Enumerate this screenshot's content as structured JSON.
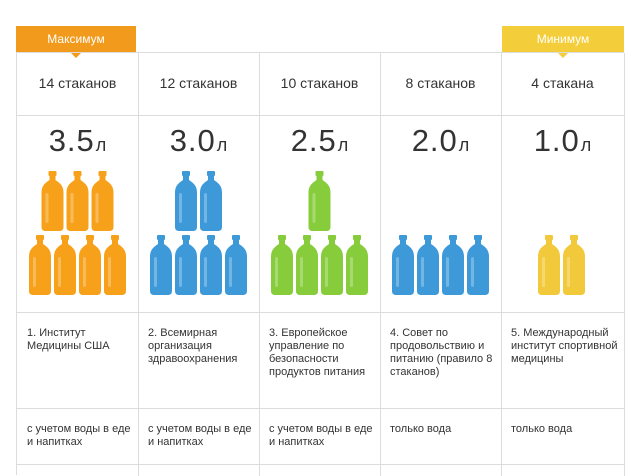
{
  "badges": {
    "max": "Максимум",
    "min": "Минимум"
  },
  "colors": {
    "orange": "#f7a11a",
    "blue": "#3d99d8",
    "green": "#86cc3b",
    "yellow": "#f2c93a"
  },
  "columns": [
    {
      "glasses": "14 стаканов",
      "volume_num": "3.5",
      "volume_unit": "л",
      "bottles": 7,
      "color": "orange",
      "source": "1. Институт Медицины США",
      "note": "с учетом воды в еде и напитках"
    },
    {
      "glasses": "12 стаканов",
      "volume_num": "3.0",
      "volume_unit": "л",
      "bottles": 6,
      "color": "blue",
      "source": "2. Всемирная организация здравоохранения",
      "note": "с учетом воды в еде и напитках"
    },
    {
      "glasses": "10 стаканов",
      "volume_num": "2.5",
      "volume_unit": "л",
      "bottles": 5,
      "color": "green",
      "source": "3. Европейское управление по безопасности продуктов питания",
      "note": "с учетом воды в еде и напитках"
    },
    {
      "glasses": "8 стаканов",
      "volume_num": "2.0",
      "volume_unit": "л",
      "bottles": 4,
      "color": "blue",
      "source": "4. Совет по продовольствию и питанию (правило 8 стаканов)",
      "note": "только вода"
    },
    {
      "glasses": "4 стакана",
      "volume_num": "1.0",
      "volume_unit": "л",
      "bottles": 2,
      "color": "yellow",
      "source": "5. Международный институт спортивной медицины",
      "note": "только вода"
    }
  ]
}
